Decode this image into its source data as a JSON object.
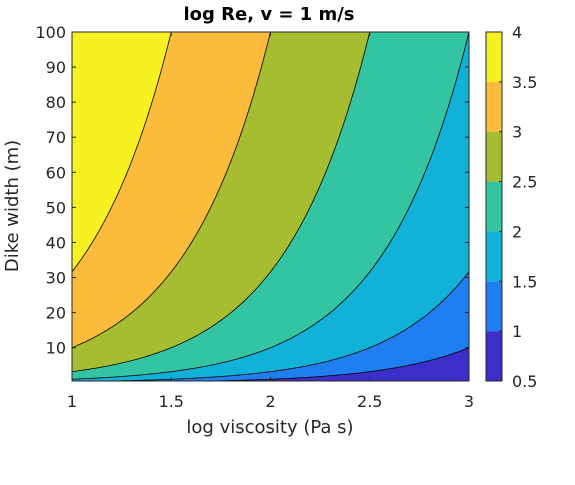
{
  "chart_data": {
    "type": "contour",
    "title": "log Re, v = 1 m/s",
    "xlabel": "log viscosity (Pa s)",
    "ylabel": "Dike width (m)",
    "xlim": [
      1,
      3
    ],
    "ylim": [
      0.5,
      100
    ],
    "xticks": [
      "1",
      "1.5",
      "2",
      "2.5",
      "3"
    ],
    "yticks": [
      "10",
      "20",
      "30",
      "40",
      "50",
      "60",
      "70",
      "80",
      "90",
      "100"
    ],
    "contour_levels": [
      0.5,
      1,
      1.5,
      2,
      2.5,
      3,
      3.5,
      4
    ],
    "contour_colors": [
      "#3e2ec9",
      "#1f7ef0",
      "#12b1d8",
      "#33c5a1",
      "#a7bd31",
      "#fcbc3b",
      "#f7f122"
    ],
    "colorbar": {
      "clim": [
        0.5,
        4
      ],
      "ticks": [
        "0.5",
        "1",
        "1.5",
        "2",
        "2.5",
        "3",
        "3.5",
        "4"
      ]
    },
    "grid": false
  }
}
